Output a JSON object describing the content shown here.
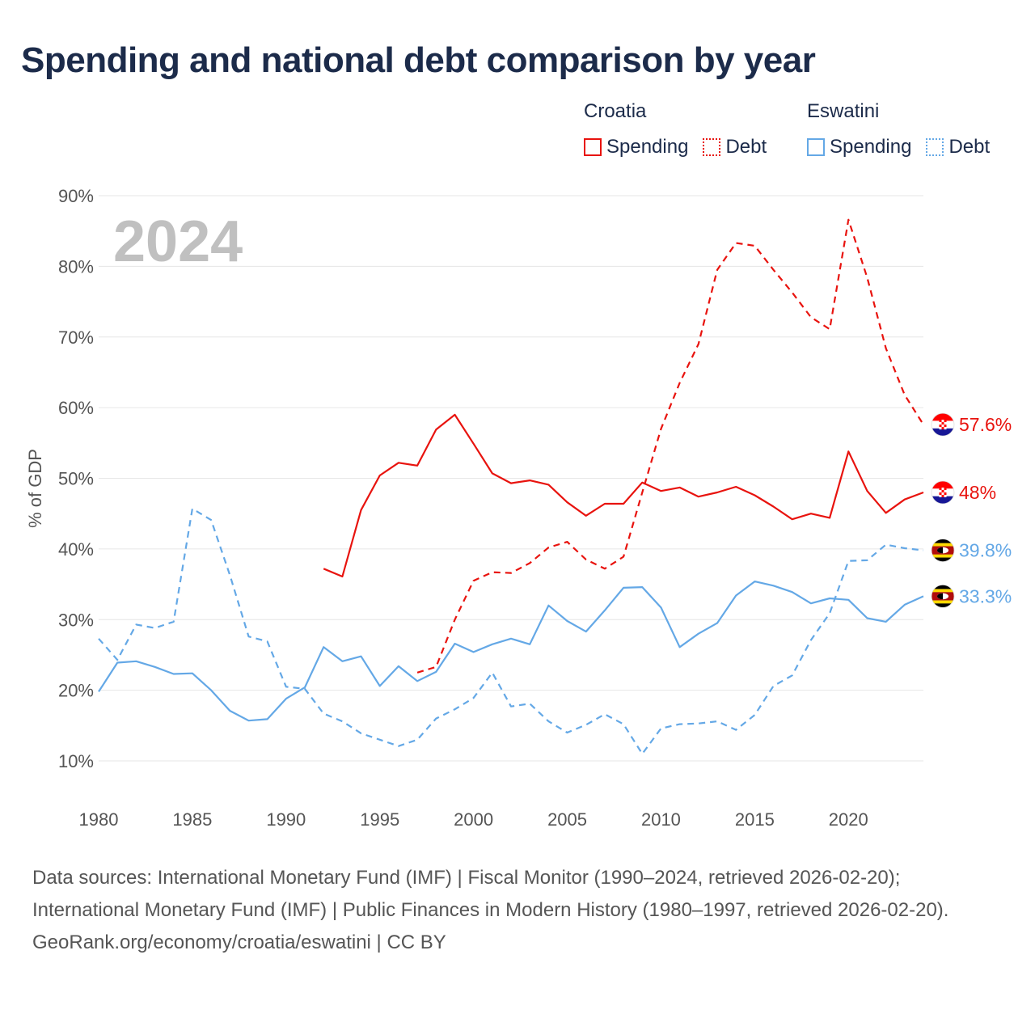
{
  "title": "Spending and national debt comparison by year",
  "year_overlay": "2024",
  "legend": [
    {
      "country": "Croatia",
      "color": "#e8130e",
      "items": [
        {
          "label": "Spending",
          "style": "solid"
        },
        {
          "label": "Debt",
          "style": "dotted"
        }
      ]
    },
    {
      "country": "Eswatini",
      "color": "#64a8e6",
      "items": [
        {
          "label": "Spending",
          "style": "solid"
        },
        {
          "label": "Debt",
          "style": "dotted"
        }
      ]
    }
  ],
  "sources": {
    "line1": "Data sources: International Monetary Fund (IMF) | Fiscal Monitor (1990–2024, retrieved 2026-02-20); International Monetary Fund (IMF) | Public Finances in Modern History (1980–1997, retrieved 2026-02-20).",
    "line2": "GeoRank.org/economy/croatia/eswatini | CC BY"
  },
  "chart_data": {
    "type": "line",
    "title": "Spending and national debt comparison by year",
    "xlabel": "",
    "ylabel": "% of GDP",
    "xlim": [
      1980,
      2024
    ],
    "ylim": [
      10,
      90
    ],
    "xticks": [
      1980,
      1985,
      1990,
      1995,
      2000,
      2005,
      2010,
      2015,
      2020
    ],
    "yticks": [
      10,
      20,
      30,
      40,
      50,
      60,
      70,
      80,
      90
    ],
    "ytick_suffix": "%",
    "grid": true,
    "series": [
      {
        "name": "Croatia Spending",
        "color": "#e8130e",
        "dash": "solid",
        "flag": "croatia",
        "end_label": "48%",
        "x": [
          1992,
          1993,
          1994,
          1995,
          1996,
          1997,
          1998,
          1999,
          2000,
          2001,
          2002,
          2003,
          2004,
          2005,
          2006,
          2007,
          2008,
          2009,
          2010,
          2011,
          2012,
          2013,
          2014,
          2015,
          2016,
          2017,
          2018,
          2019,
          2020,
          2021,
          2022,
          2023,
          2024
        ],
        "y": [
          37.2,
          36.1,
          45.5,
          50.4,
          52.2,
          51.8,
          56.9,
          59.0,
          54.9,
          50.7,
          49.3,
          49.7,
          49.1,
          46.6,
          44.7,
          46.4,
          46.4,
          49.4,
          48.2,
          48.7,
          47.4,
          48.0,
          48.8,
          47.6,
          46.0,
          44.2,
          45.0,
          44.4,
          53.8,
          48.2,
          45.1,
          47.0,
          48.0
        ]
      },
      {
        "name": "Croatia Debt",
        "color": "#e8130e",
        "dash": "dashed",
        "flag": "croatia",
        "end_label": "57.6%",
        "x": [
          1997,
          1998,
          1999,
          2000,
          2001,
          2002,
          2003,
          2004,
          2005,
          2006,
          2007,
          2008,
          2009,
          2010,
          2011,
          2012,
          2013,
          2014,
          2015,
          2016,
          2017,
          2018,
          2019,
          2020,
          2021,
          2022,
          2023,
          2024
        ],
        "y": [
          22.5,
          23.3,
          30.0,
          35.5,
          36.7,
          36.6,
          38.0,
          40.2,
          41.0,
          38.5,
          37.2,
          38.9,
          48.0,
          57.0,
          63.5,
          69.0,
          79.5,
          83.3,
          82.9,
          79.5,
          76.3,
          72.8,
          71.1,
          86.6,
          78.4,
          68.4,
          61.8,
          57.6
        ]
      },
      {
        "name": "Eswatini Spending",
        "color": "#64a8e6",
        "dash": "solid",
        "flag": "eswatini",
        "end_label": "33.3%",
        "x": [
          1980,
          1981,
          1982,
          1983,
          1984,
          1985,
          1986,
          1987,
          1988,
          1989,
          1990,
          1991,
          1992,
          1993,
          1994,
          1995,
          1996,
          1997,
          1998,
          1999,
          2000,
          2001,
          2002,
          2003,
          2004,
          2005,
          2006,
          2007,
          2008,
          2009,
          2010,
          2011,
          2012,
          2013,
          2014,
          2015,
          2016,
          2017,
          2018,
          2019,
          2020,
          2021,
          2022,
          2023,
          2024
        ],
        "y": [
          19.8,
          23.9,
          24.1,
          23.3,
          22.3,
          22.4,
          20.0,
          17.1,
          15.7,
          15.9,
          18.8,
          20.4,
          26.1,
          24.1,
          24.8,
          20.6,
          23.4,
          21.3,
          22.6,
          26.6,
          25.4,
          26.5,
          27.3,
          26.5,
          32.0,
          29.8,
          28.3,
          31.3,
          34.5,
          34.6,
          31.7,
          26.1,
          28.0,
          29.5,
          33.4,
          35.4,
          34.8,
          33.9,
          32.3,
          33.0,
          32.8,
          30.2,
          29.7,
          32.1,
          33.3
        ]
      },
      {
        "name": "Eswatini Debt",
        "color": "#64a8e6",
        "dash": "dashed",
        "flag": "eswatini",
        "end_label": "39.8%",
        "x": [
          1980,
          1981,
          1982,
          1983,
          1984,
          1985,
          1986,
          1987,
          1988,
          1989,
          1990,
          1991,
          1992,
          1993,
          1994,
          1995,
          1996,
          1997,
          1998,
          1999,
          2000,
          2001,
          2002,
          2003,
          2004,
          2005,
          2006,
          2007,
          2008,
          2009,
          2010,
          2011,
          2012,
          2013,
          2014,
          2015,
          2016,
          2017,
          2018,
          2019,
          2020,
          2021,
          2022,
          2023,
          2024
        ],
        "y": [
          27.3,
          24.3,
          29.3,
          28.8,
          29.7,
          45.7,
          44.1,
          36.3,
          27.6,
          26.9,
          20.5,
          20.2,
          16.7,
          15.6,
          13.9,
          13.0,
          12.1,
          13.0,
          16.0,
          17.3,
          18.9,
          22.5,
          17.7,
          18.1,
          15.6,
          14.0,
          15.1,
          16.6,
          15.2,
          11.0,
          14.6,
          15.2,
          15.3,
          15.6,
          14.4,
          16.5,
          20.6,
          22.1,
          27.1,
          30.9,
          38.3,
          38.4,
          40.6,
          40.1,
          39.8
        ]
      }
    ]
  }
}
